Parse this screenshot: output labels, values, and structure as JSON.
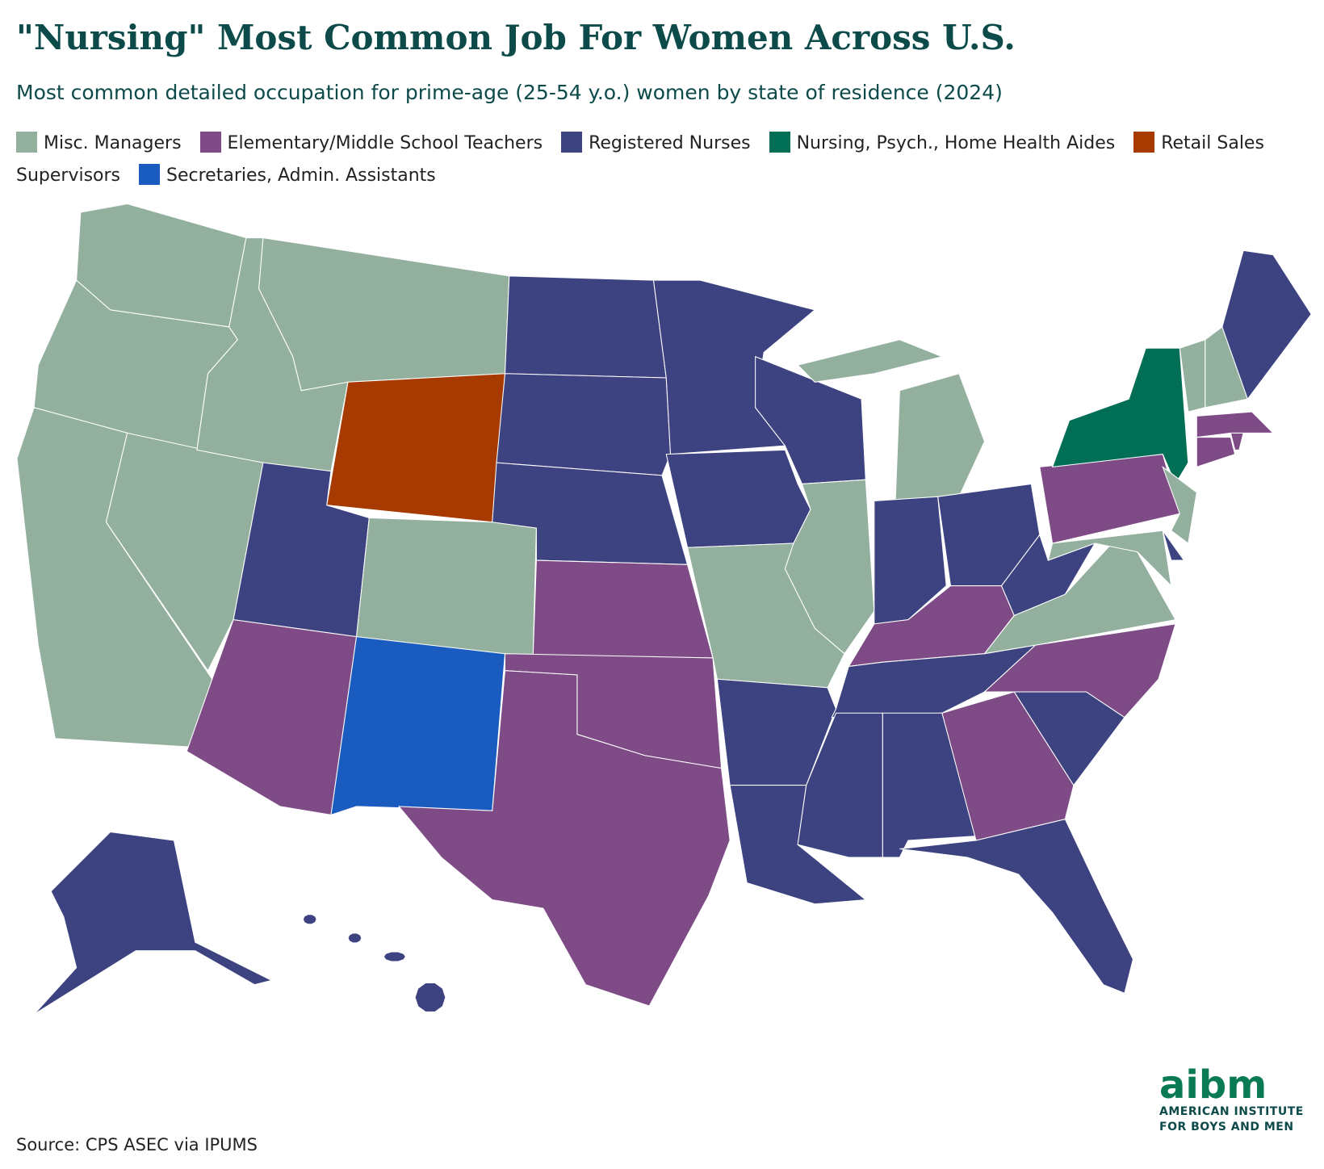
{
  "header": {
    "title": "\"Nursing\" Most Common Job For Women Across U.S.",
    "subtitle": "Most common detailed occupation for prime-age (25-54 y.o.) women by state of residence (2024)"
  },
  "legend": [
    {
      "label": "Misc. Managers",
      "color": "#93b09f"
    },
    {
      "label": "Elementary/Middle School Teachers",
      "color": "#7e4b87"
    },
    {
      "label": "Registered Nurses",
      "color": "#3d4380"
    },
    {
      "label": "Nursing, Psych., Home Health Aides",
      "color": "#006f56"
    },
    {
      "label": "Retail Sales Supervisors",
      "color": "#a63a00"
    },
    {
      "label": "Secretaries, Admin. Assistants",
      "color": "#1a5bbf"
    }
  ],
  "map": {
    "region_categories": [
      0,
      0,
      0,
      0,
      0,
      0,
      4,
      2,
      0,
      1,
      5,
      2,
      2,
      2,
      1,
      1,
      1,
      2,
      2,
      0,
      2,
      2,
      2,
      0,
      0,
      2,
      2,
      1,
      2,
      2,
      2,
      1,
      2,
      2,
      1,
      0,
      2,
      1,
      3,
      0,
      2,
      0,
      1,
      1,
      1,
      0,
      0,
      2,
      2,
      2
    ]
  },
  "footer": {
    "source": "Source: CPS ASEC via IPUMS",
    "logo": "aibm",
    "logo_line1": "AMERICAN INSTITUTE",
    "logo_line2": "FOR BOYS AND MEN"
  }
}
